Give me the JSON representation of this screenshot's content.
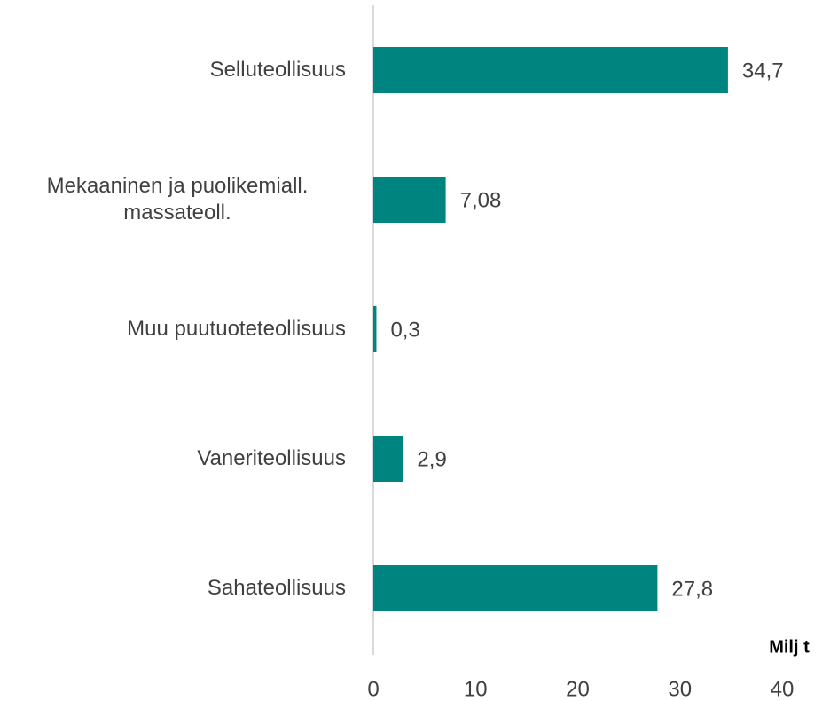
{
  "chart_data": {
    "type": "bar",
    "orientation": "horizontal",
    "categories": [
      "Selluteollisuus",
      "Mekaaninen ja puolikemiall. massateoll.",
      "Muu puutuoteteollisuus",
      "Vaneriteollisuus",
      "Sahateollisuus"
    ],
    "values": [
      34.7,
      7.08,
      0.3,
      2.9,
      27.8
    ],
    "value_labels": [
      "34,7",
      "7,08",
      "0,3",
      "2,9",
      "27,8"
    ],
    "color": "#008480",
    "x_label": "Milj t",
    "xlim": [
      0,
      40
    ],
    "xticks": [
      0,
      10,
      20,
      30,
      40
    ],
    "grid": false
  }
}
